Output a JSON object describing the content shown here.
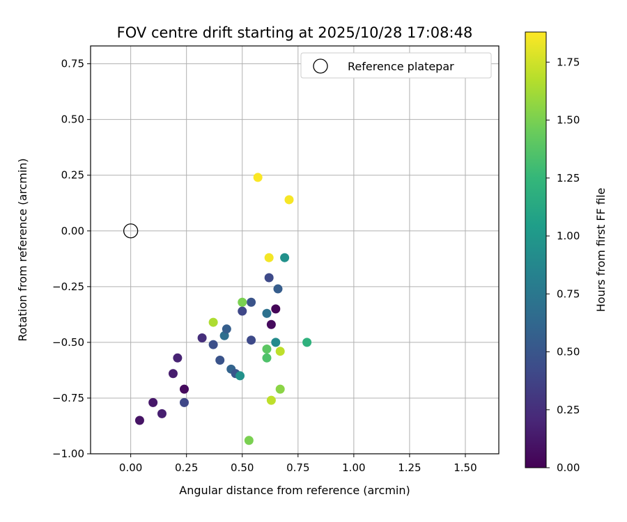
{
  "chart_data": {
    "type": "scatter",
    "title": "FOV centre drift starting at 2025/10/28 17:08:48",
    "xlabel": "Angular distance from reference (arcmin)",
    "ylabel": "Rotation from reference (arcmin)",
    "xlim": [
      -0.18,
      1.65
    ],
    "ylim": [
      -1.0,
      0.83
    ],
    "xticks": [
      0.0,
      0.25,
      0.5,
      0.75,
      1.0,
      1.25,
      1.5
    ],
    "xtick_labels": [
      "0.00",
      "0.25",
      "0.50",
      "0.75",
      "1.00",
      "1.25",
      "1.50"
    ],
    "yticks": [
      -1.0,
      -0.75,
      -0.5,
      -0.25,
      0.0,
      0.25,
      0.5,
      0.75
    ],
    "ytick_labels": [
      "−1.00",
      "−0.75",
      "−0.50",
      "−0.25",
      "0.00",
      "0.25",
      "0.50",
      "0.75"
    ],
    "grid": true,
    "legend": {
      "placement": "upper-right",
      "entries": [
        "Reference platepar"
      ]
    },
    "reference_point": {
      "x": 0.0,
      "y": 0.0,
      "marker": "open-circle"
    },
    "colorbar": {
      "label": "Hours from first FF file",
      "colormap": "viridis",
      "range": [
        0.0,
        1.88
      ],
      "ticks": [
        0.0,
        0.25,
        0.5,
        0.75,
        1.0,
        1.25,
        1.5,
        1.75
      ],
      "tick_labels": [
        "0.00",
        "0.25",
        "0.50",
        "0.75",
        "1.00",
        "1.25",
        "1.50",
        "1.75"
      ]
    },
    "points": [
      {
        "x": 0.04,
        "y": -0.85,
        "hours": 0.1
      },
      {
        "x": 0.1,
        "y": -0.77,
        "hours": 0.12
      },
      {
        "x": 0.14,
        "y": -0.82,
        "hours": 0.16
      },
      {
        "x": 0.19,
        "y": -0.64,
        "hours": 0.15
      },
      {
        "x": 0.21,
        "y": -0.57,
        "hours": 0.18
      },
      {
        "x": 0.24,
        "y": -0.71,
        "hours": 0.05
      },
      {
        "x": 0.24,
        "y": -0.77,
        "hours": 0.4
      },
      {
        "x": 0.32,
        "y": -0.48,
        "hours": 0.25
      },
      {
        "x": 0.37,
        "y": -0.51,
        "hours": 0.45
      },
      {
        "x": 0.4,
        "y": -0.58,
        "hours": 0.48
      },
      {
        "x": 0.42,
        "y": -0.47,
        "hours": 0.68
      },
      {
        "x": 0.43,
        "y": -0.44,
        "hours": 0.56
      },
      {
        "x": 0.45,
        "y": -0.62,
        "hours": 0.6
      },
      {
        "x": 0.47,
        "y": -0.64,
        "hours": 0.5
      },
      {
        "x": 0.49,
        "y": -0.65,
        "hours": 0.95
      },
      {
        "x": 0.5,
        "y": -0.36,
        "hours": 0.4
      },
      {
        "x": 0.54,
        "y": -0.32,
        "hours": 0.48
      },
      {
        "x": 0.54,
        "y": -0.49,
        "hours": 0.42
      },
      {
        "x": 0.5,
        "y": -0.32,
        "hours": 1.5
      },
      {
        "x": 0.37,
        "y": -0.41,
        "hours": 1.65
      },
      {
        "x": 0.53,
        "y": -0.94,
        "hours": 1.5
      },
      {
        "x": 0.61,
        "y": -0.37,
        "hours": 0.7
      },
      {
        "x": 0.62,
        "y": -0.21,
        "hours": 0.42
      },
      {
        "x": 0.63,
        "y": -0.42,
        "hours": 0.05
      },
      {
        "x": 0.65,
        "y": -0.35,
        "hours": 0.02
      },
      {
        "x": 0.66,
        "y": -0.26,
        "hours": 0.55
      },
      {
        "x": 0.65,
        "y": -0.5,
        "hours": 0.9
      },
      {
        "x": 0.61,
        "y": -0.53,
        "hours": 1.4
      },
      {
        "x": 0.61,
        "y": -0.57,
        "hours": 1.35
      },
      {
        "x": 0.67,
        "y": -0.54,
        "hours": 1.7
      },
      {
        "x": 0.67,
        "y": -0.71,
        "hours": 1.55
      },
      {
        "x": 0.63,
        "y": -0.76,
        "hours": 1.7
      },
      {
        "x": 0.69,
        "y": -0.12,
        "hours": 0.95
      },
      {
        "x": 0.79,
        "y": -0.5,
        "hours": 1.2
      },
      {
        "x": 0.62,
        "y": -0.12,
        "hours": 1.85
      },
      {
        "x": 0.57,
        "y": 0.24,
        "hours": 1.87
      },
      {
        "x": 0.71,
        "y": 0.14,
        "hours": 1.86
      }
    ]
  }
}
